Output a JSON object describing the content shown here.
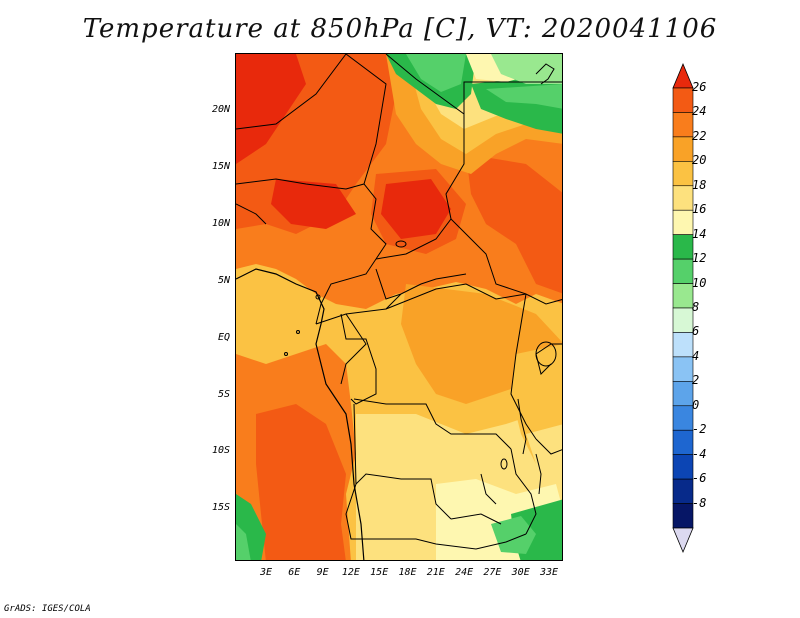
{
  "title": "Temperature at 850hPa [C], VT: 2020041106",
  "credit": "GrADS: IGES/COLA",
  "lat_labels": [
    "20N",
    "15N",
    "10N",
    "5N",
    "EQ",
    "5S",
    "10S",
    "15S"
  ],
  "lon_labels": [
    "3E",
    "6E",
    "9E",
    "12E",
    "15E",
    "18E",
    "21E",
    "24E",
    "27E",
    "30E",
    "33E"
  ],
  "legend": {
    "labels": [
      "26",
      "24",
      "22",
      "20",
      "18",
      "16",
      "14",
      "12",
      "10",
      "8",
      "6",
      "4",
      "2",
      "0",
      "-2",
      "-4",
      "-6",
      "-8"
    ],
    "colors": [
      "#e8290c",
      "#f35a14",
      "#f97d1c",
      "#f9a227",
      "#fbc243",
      "#fde17e",
      "#fef7b0",
      "#2ab84a",
      "#55d06a",
      "#99e88f",
      "#d7f8d5",
      "#bde0fb",
      "#8ac3f4",
      "#5da4ea",
      "#3a86e0",
      "#1e66d0",
      "#0c45b4",
      "#072a8a",
      "#061666",
      "#dcd9f0"
    ]
  },
  "colors": {
    "t26": "#e8290c",
    "t24": "#f35a14",
    "t22": "#f97d1c",
    "t20": "#f9a227",
    "t18": "#fbc243",
    "t16": "#fde17e",
    "t14": "#fef7b0",
    "t12": "#2ab84a",
    "t10": "#55d06a",
    "t8": "#99e88f"
  }
}
